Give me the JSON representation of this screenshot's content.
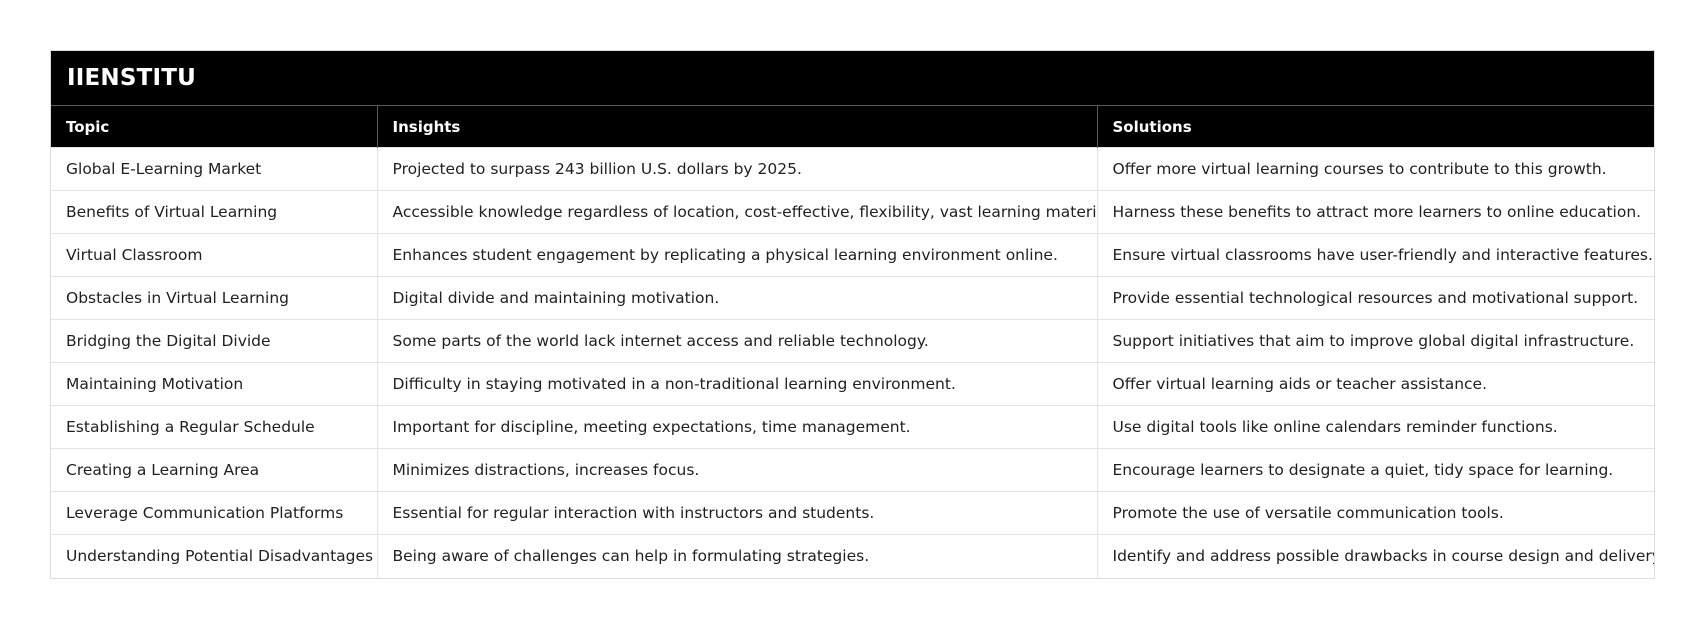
{
  "brand": {
    "title": "IIENSTITU"
  },
  "table": {
    "headers": [
      "Topic",
      "Insights",
      "Solutions"
    ],
    "rows": [
      [
        "Global E-Learning Market",
        "Projected to surpass 243 billion U.S. dollars by 2025.",
        "Offer more virtual learning courses to contribute to this growth."
      ],
      [
        "Benefits of Virtual Learning",
        "Accessible knowledge regardless of location, cost-effective, flexibility, vast learning materials.",
        "Harness these benefits to attract more learners to online education."
      ],
      [
        "Virtual Classroom",
        "Enhances student engagement by replicating a physical learning environment online.",
        "Ensure virtual classrooms have user-friendly and interactive features."
      ],
      [
        "Obstacles in Virtual Learning",
        "Digital divide and maintaining motivation.",
        "Provide essential technological resources and motivational support."
      ],
      [
        "Bridging the Digital Divide",
        "Some parts of the world lack internet access and reliable technology.",
        "Support initiatives that aim to improve global digital infrastructure."
      ],
      [
        "Maintaining Motivation",
        "Difficulty in staying motivated in a non-traditional learning environment.",
        "Offer virtual learning aids or teacher assistance."
      ],
      [
        "Establishing a Regular Schedule",
        "Important for discipline, meeting expectations, time management.",
        "Use digital tools like online calendars reminder functions."
      ],
      [
        "Creating a Learning Area",
        "Minimizes distractions, increases focus.",
        "Encourage learners to designate a quiet, tidy space for learning."
      ],
      [
        "Leverage Communication Platforms",
        "Essential for regular interaction with instructors and students.",
        "Promote the use of versatile communication tools."
      ],
      [
        "Understanding Potential Disadvantages",
        "Being aware of challenges can help in formulating strategies.",
        "Identify and address possible drawbacks in course design and delivery."
      ]
    ]
  },
  "colors": {
    "header_bg": "#000000",
    "header_text": "#ffffff",
    "border": "#e3e3e3"
  }
}
